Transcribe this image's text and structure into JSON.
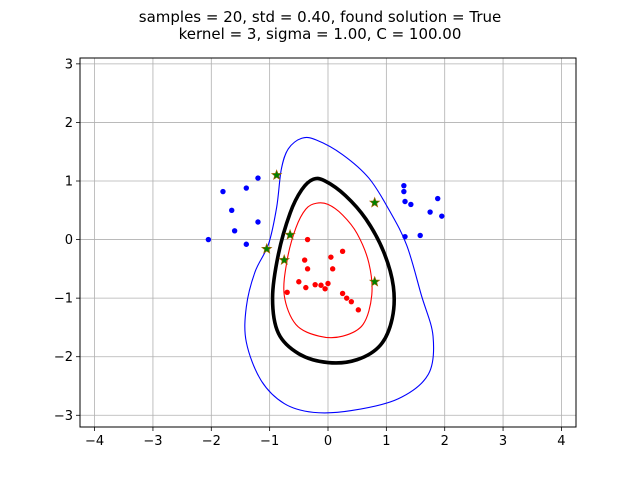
{
  "chart_data": {
    "type": "scatter",
    "title": "samples = 20, std = 0.40, found solution = True",
    "subtitle": "kernel = 3, sigma = 1.00, C = 100.00",
    "xlabel": "",
    "ylabel": "",
    "xlim": [
      -4.25,
      4.25
    ],
    "ylim": [
      -3.2,
      3.1
    ],
    "xticks": [
      -4,
      -3,
      -2,
      -1,
      0,
      1,
      2,
      3,
      4
    ],
    "yticks": [
      -3,
      -2,
      -1,
      0,
      1,
      2,
      3
    ],
    "grid": true,
    "colors": {
      "class_a": "#0000ff",
      "class_b": "#ff0000",
      "support_vector": "#008000",
      "decision_boundary": "#000000"
    },
    "series": [
      {
        "marker": "circle",
        "color": "#0000ff",
        "points": [
          [
            -2.05,
            0.0
          ],
          [
            -1.8,
            0.82
          ],
          [
            -1.65,
            0.5
          ],
          [
            -1.6,
            0.15
          ],
          [
            -1.4,
            0.88
          ],
          [
            -1.4,
            -0.08
          ],
          [
            -1.2,
            1.05
          ],
          [
            -1.2,
            0.3
          ],
          [
            1.3,
            0.92
          ],
          [
            1.3,
            0.82
          ],
          [
            1.32,
            0.65
          ],
          [
            1.42,
            0.6
          ],
          [
            1.32,
            0.05
          ],
          [
            1.58,
            0.07
          ],
          [
            1.75,
            0.47
          ],
          [
            1.88,
            0.7
          ],
          [
            1.95,
            0.4
          ]
        ]
      },
      {
        "marker": "circle",
        "color": "#ff0000",
        "points": [
          [
            -0.35,
            0.0
          ],
          [
            0.25,
            -0.2
          ],
          [
            -0.4,
            -0.35
          ],
          [
            0.05,
            -0.3
          ],
          [
            -0.35,
            -0.5
          ],
          [
            0.08,
            -0.5
          ],
          [
            -0.7,
            -0.9
          ],
          [
            -0.5,
            -0.72
          ],
          [
            -0.38,
            -0.82
          ],
          [
            -0.22,
            -0.77
          ],
          [
            -0.12,
            -0.78
          ],
          [
            0.0,
            -0.75
          ],
          [
            -0.05,
            -0.84
          ],
          [
            0.25,
            -0.92
          ],
          [
            0.32,
            -1.0
          ],
          [
            0.4,
            -1.06
          ],
          [
            0.52,
            -1.2
          ]
        ]
      },
      {
        "marker": "star",
        "color": "#008000",
        "points": [
          [
            -0.88,
            1.1
          ],
          [
            0.8,
            0.63
          ],
          [
            -0.65,
            0.08
          ],
          [
            -1.05,
            -0.16
          ],
          [
            -0.75,
            -0.35
          ],
          [
            0.8,
            -0.72
          ]
        ]
      }
    ],
    "contours": [
      {
        "level": "margin_outer",
        "color": "#0000ff",
        "points": [
          [
            -0.45,
            1.73
          ],
          [
            -0.2,
            1.7
          ],
          [
            0.25,
            1.45
          ],
          [
            0.7,
            1.05
          ],
          [
            1.05,
            0.5
          ],
          [
            1.35,
            -0.1
          ],
          [
            1.6,
            -0.95
          ],
          [
            1.8,
            -1.65
          ],
          [
            1.72,
            -2.3
          ],
          [
            1.2,
            -2.72
          ],
          [
            0.4,
            -2.92
          ],
          [
            -0.25,
            -2.95
          ],
          [
            -0.75,
            -2.8
          ],
          [
            -1.15,
            -2.4
          ],
          [
            -1.4,
            -1.75
          ],
          [
            -1.4,
            -1.15
          ],
          [
            -1.25,
            -0.55
          ],
          [
            -1.02,
            -0.08
          ],
          [
            -0.88,
            0.55
          ],
          [
            -0.8,
            1.2
          ],
          [
            -0.68,
            1.55
          ]
        ]
      },
      {
        "level": "decision_boundary",
        "color": "#000000",
        "points": [
          [
            -0.25,
            1.03
          ],
          [
            -0.05,
            1.0
          ],
          [
            0.3,
            0.75
          ],
          [
            0.65,
            0.35
          ],
          [
            0.95,
            -0.2
          ],
          [
            1.12,
            -0.8
          ],
          [
            1.1,
            -1.35
          ],
          [
            0.9,
            -1.8
          ],
          [
            0.5,
            -2.05
          ],
          [
            0.0,
            -2.1
          ],
          [
            -0.5,
            -1.95
          ],
          [
            -0.85,
            -1.6
          ],
          [
            -0.95,
            -1.0
          ],
          [
            -0.85,
            -0.25
          ],
          [
            -0.65,
            0.45
          ],
          [
            -0.45,
            0.85
          ]
        ]
      },
      {
        "level": "margin_inner",
        "color": "#ff0000",
        "points": [
          [
            -0.2,
            0.62
          ],
          [
            0.0,
            0.6
          ],
          [
            0.25,
            0.42
          ],
          [
            0.5,
            0.1
          ],
          [
            0.7,
            -0.4
          ],
          [
            0.75,
            -0.95
          ],
          [
            0.6,
            -1.45
          ],
          [
            0.25,
            -1.65
          ],
          [
            -0.15,
            -1.65
          ],
          [
            -0.55,
            -1.45
          ],
          [
            -0.75,
            -0.95
          ],
          [
            -0.7,
            -0.35
          ],
          [
            -0.55,
            0.2
          ],
          [
            -0.38,
            0.52
          ]
        ]
      }
    ]
  }
}
